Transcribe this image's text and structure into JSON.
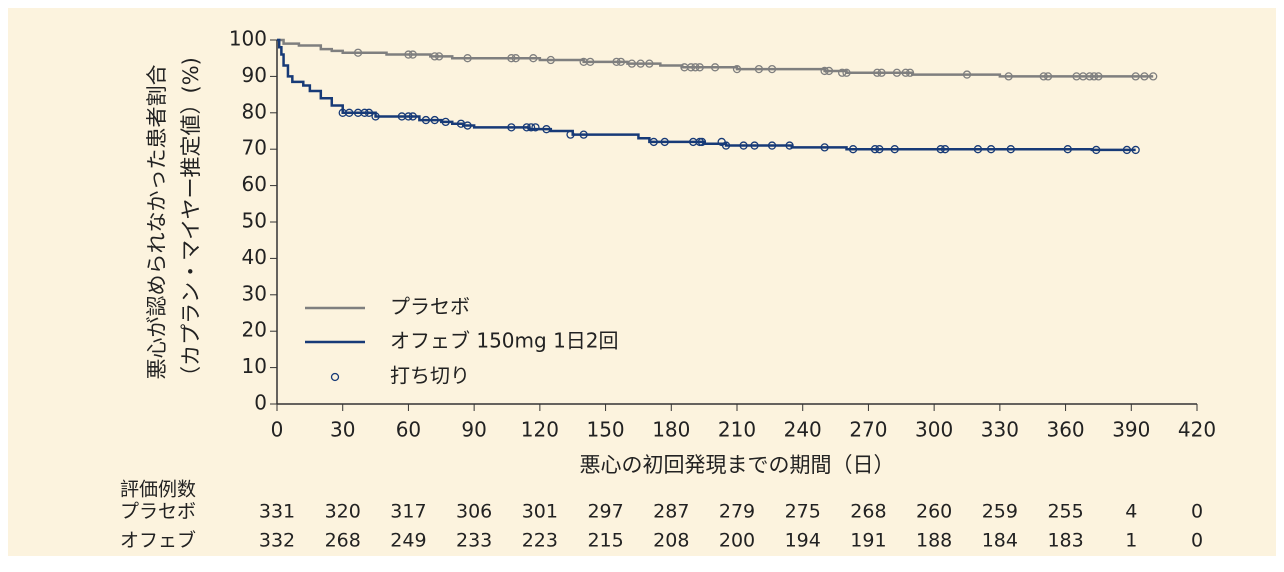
{
  "chart_data": {
    "type": "km",
    "ylabel": [
      "悪心が認められなかった患者割合",
      "（カプラン・マイヤー推定値）(%)"
    ],
    "xlabel": "悪心の初回発現までの期間（日）",
    "xlim": [
      0,
      420
    ],
    "xticks": [
      0,
      30,
      60,
      90,
      120,
      150,
      180,
      210,
      240,
      270,
      300,
      330,
      360,
      390,
      420
    ],
    "ylim": [
      0,
      100
    ],
    "yticks": [
      0,
      10,
      20,
      30,
      40,
      50,
      60,
      70,
      80,
      90,
      100
    ],
    "censor_label": "打ち切り",
    "series": [
      {
        "name": "プラセボ",
        "color": "#7f7f7f",
        "x": [
          0,
          3,
          10,
          20,
          25,
          30,
          50,
          70,
          80,
          120,
          140,
          160,
          175,
          185,
          210,
          250,
          260,
          290,
          330,
          400
        ],
        "values": [
          100,
          99,
          98.5,
          97.5,
          97,
          96.5,
          96,
          95.5,
          95,
          94.5,
          94,
          93.5,
          93,
          92.5,
          92,
          91.5,
          91,
          90.5,
          90,
          90
        ],
        "censored": {
          "x": [
            37,
            60,
            62,
            72,
            74,
            87,
            107,
            109,
            117,
            125,
            140,
            143,
            155,
            157,
            162,
            166,
            170,
            186,
            189,
            191,
            193,
            200,
            210,
            220,
            226,
            250,
            252,
            258,
            260,
            274,
            276,
            283,
            287,
            289,
            315,
            334,
            350,
            352,
            365,
            368,
            371,
            373,
            375,
            392,
            396,
            400
          ],
          "values": [
            96.5,
            96,
            96,
            95.5,
            95.5,
            95,
            95,
            95,
            95,
            94.5,
            94,
            94,
            94,
            94,
            93.5,
            93.5,
            93.5,
            92.5,
            92.5,
            92.5,
            92.5,
            92.5,
            92,
            92,
            92,
            91.5,
            91.5,
            91,
            91,
            91,
            91,
            91,
            91,
            91,
            90.5,
            90,
            90,
            90,
            90,
            90,
            90,
            90,
            90,
            90,
            90,
            90
          ]
        }
      },
      {
        "name": "オフェブ 150mg 1日2回",
        "color": "#173a77",
        "x": [
          0,
          1,
          2,
          3,
          5,
          7,
          12,
          15,
          20,
          25,
          30,
          45,
          65,
          75,
          80,
          85,
          90,
          115,
          125,
          135,
          165,
          170,
          195,
          205,
          235,
          260,
          372,
          392
        ],
        "values": [
          100,
          98,
          96,
          93,
          90,
          88.5,
          87.5,
          86,
          84,
          82,
          80,
          79,
          78,
          77.5,
          77,
          76.5,
          76,
          75.5,
          75,
          74,
          73,
          72,
          71.5,
          71,
          70.5,
          70,
          69.8,
          69.8
        ],
        "censored": {
          "x": [
            30,
            33,
            37,
            40,
            42,
            45,
            57,
            60,
            62,
            68,
            72,
            77,
            84,
            87,
            107,
            114,
            116,
            118,
            123,
            134,
            140,
            172,
            177,
            190,
            193,
            194,
            203,
            205,
            213,
            218,
            226,
            234,
            250,
            263,
            273,
            275,
            282,
            303,
            305,
            320,
            326,
            335,
            361,
            374,
            388,
            392
          ],
          "values": [
            80,
            80,
            80,
            80,
            80,
            79,
            79,
            79,
            79,
            78,
            78,
            77.5,
            77,
            76.5,
            76,
            76,
            76,
            76,
            75.5,
            74,
            74,
            72,
            72,
            72,
            72,
            72,
            72,
            71,
            71,
            71,
            71,
            71,
            70.5,
            70,
            70,
            70,
            70,
            70,
            70,
            70,
            70,
            70,
            70,
            69.8,
            69.8,
            69.8
          ]
        }
      }
    ],
    "risk_table": {
      "title": "評価例数",
      "rows": [
        {
          "label": "プラセボ",
          "values": [
            331,
            320,
            317,
            306,
            301,
            297,
            287,
            279,
            275,
            268,
            260,
            259,
            255,
            4,
            0
          ]
        },
        {
          "label": "オフェブ",
          "values": [
            332,
            268,
            249,
            233,
            223,
            215,
            208,
            200,
            194,
            191,
            188,
            184,
            183,
            1,
            0
          ]
        }
      ]
    }
  }
}
